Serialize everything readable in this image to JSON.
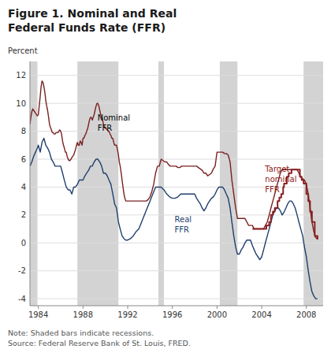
{
  "chart_data": {
    "type": "line",
    "title": "Figure 1. Nominal and Real\nFederal Funds Rate (FFR)",
    "ylabel": "Percent",
    "note": "Note: Shaded bars indicate recessions.\nSource: Federal Reserve Bank of St. Louis, FRED.",
    "xlim": [
      1983.25,
      2009.5
    ],
    "ylim": [
      -4.5,
      13.0
    ],
    "xticks": [
      1984,
      1988,
      1992,
      1996,
      2000,
      2004,
      2008
    ],
    "yticks": [
      -4,
      -2,
      0,
      2,
      4,
      6,
      8,
      10,
      12
    ],
    "grid": true,
    "bands": [
      [
        1983.25,
        1983.92
      ],
      [
        1987.5,
        1991.17
      ],
      [
        1994.75,
        1995.25
      ],
      [
        2000.25,
        2001.83
      ],
      [
        2007.75,
        2009.5
      ]
    ],
    "band_color": "#d3d3d3",
    "annotations": [
      {
        "text": "Nominal\nFFR",
        "x": 1989.3,
        "y": 9.3,
        "color": "#000000"
      },
      {
        "text": "Real\nFFR",
        "x": 1996.2,
        "y": 2.0,
        "color": "#1f3f6e"
      },
      {
        "text": "Target\nnominal\nFFR",
        "x": 2004.3,
        "y": 5.6,
        "color": "#8b2020"
      }
    ],
    "series": [
      {
        "type": "line",
        "color": "#7b2020",
        "x": [
          1983.25,
          1983.33,
          1983.42,
          1983.5,
          1983.58,
          1983.67,
          1983.75,
          1983.83,
          1983.92,
          1984.0,
          1984.08,
          1984.17,
          1984.25,
          1984.33,
          1984.42,
          1984.5,
          1984.58,
          1984.67,
          1984.75,
          1984.83,
          1984.92,
          1985.0,
          1985.08,
          1985.17,
          1985.25,
          1985.33,
          1985.42,
          1985.5,
          1985.58,
          1985.67,
          1985.75,
          1985.83,
          1985.92,
          1986.0,
          1986.08,
          1986.17,
          1986.25,
          1986.33,
          1986.42,
          1986.5,
          1986.58,
          1986.67,
          1986.75,
          1986.83,
          1986.92,
          1987.0,
          1987.08,
          1987.17,
          1987.25,
          1987.33,
          1987.42,
          1987.5,
          1987.58,
          1987.67,
          1987.75,
          1987.83,
          1987.92,
          1988.0,
          1988.08,
          1988.17,
          1988.25,
          1988.33,
          1988.42,
          1988.5,
          1988.58,
          1988.67,
          1988.75,
          1988.83,
          1988.92,
          1989.0,
          1989.08,
          1989.17,
          1989.25,
          1989.33,
          1989.42,
          1989.5,
          1989.58,
          1989.67,
          1989.75,
          1989.83,
          1989.92,
          1990.0,
          1990.08,
          1990.17,
          1990.25,
          1990.33,
          1990.42,
          1990.5,
          1990.58,
          1990.67,
          1990.75,
          1990.83,
          1990.92,
          1991.0,
          1991.08,
          1991.17,
          1991.25,
          1991.33,
          1991.42,
          1991.5,
          1991.58,
          1991.67,
          1991.75,
          1991.83,
          1991.92,
          1992.0,
          1992.17,
          1992.33,
          1992.5,
          1992.67,
          1992.83,
          1993.0,
          1993.17,
          1993.33,
          1993.5,
          1993.67,
          1993.83,
          1994.0,
          1994.17,
          1994.33,
          1994.5,
          1994.67,
          1994.83,
          1995.0,
          1995.17,
          1995.33,
          1995.5,
          1995.67,
          1995.83,
          1996.0,
          1996.17,
          1996.33,
          1996.5,
          1996.67,
          1996.83,
          1997.0,
          1997.17,
          1997.33,
          1997.5,
          1997.67,
          1997.83,
          1998.0,
          1998.17,
          1998.33,
          1998.5,
          1998.67,
          1998.83,
          1999.0,
          1999.17,
          1999.33,
          1999.5,
          1999.67,
          1999.83,
          2000.0,
          2000.17,
          2000.33,
          2000.5,
          2000.67,
          2000.83,
          2001.0,
          2001.17,
          2001.33,
          2001.5,
          2001.67,
          2001.83,
          2002.0,
          2002.17,
          2002.33,
          2002.5,
          2002.67,
          2002.83,
          2003.0,
          2003.17,
          2003.33,
          2003.5,
          2003.67,
          2003.83,
          2004.0,
          2004.17,
          2004.33,
          2004.5,
          2004.67,
          2004.83,
          2005.0,
          2005.17,
          2005.33,
          2005.5,
          2005.67,
          2005.83,
          2006.0,
          2006.17,
          2006.33,
          2006.5,
          2006.67,
          2006.83,
          2007.0,
          2007.17,
          2007.33,
          2007.5,
          2007.67,
          2007.83,
          2008.0,
          2008.17,
          2008.33,
          2008.5,
          2008.67,
          2008.83,
          2009.0
        ],
        "values": [
          8.5,
          9.0,
          9.4,
          9.6,
          9.5,
          9.4,
          9.3,
          9.2,
          9.1,
          9.2,
          9.8,
          10.5,
          11.2,
          11.6,
          11.5,
          11.2,
          10.8,
          10.2,
          9.8,
          9.5,
          9.0,
          8.5,
          8.3,
          8.1,
          7.9,
          7.9,
          7.8,
          7.8,
          7.9,
          7.9,
          7.9,
          8.0,
          8.1,
          8.0,
          7.8,
          7.3,
          7.0,
          6.8,
          6.5,
          6.5,
          6.2,
          6.0,
          5.9,
          5.9,
          6.0,
          6.1,
          6.2,
          6.3,
          6.5,
          6.7,
          7.0,
          7.2,
          7.0,
          7.0,
          7.3,
          7.2,
          7.0,
          7.5,
          7.5,
          7.7,
          7.8,
          8.0,
          8.2,
          8.5,
          8.8,
          9.0,
          9.0,
          8.8,
          9.0,
          9.2,
          9.5,
          9.8,
          10.0,
          10.0,
          9.8,
          9.5,
          9.2,
          9.0,
          8.8,
          8.5,
          8.3,
          8.2,
          8.2,
          8.1,
          8.0,
          8.0,
          7.8,
          7.7,
          7.5,
          7.5,
          7.2,
          7.0,
          7.0,
          7.0,
          6.7,
          6.3,
          5.8,
          5.5,
          5.0,
          4.5,
          4.0,
          3.5,
          3.2,
          3.0,
          3.0,
          3.0,
          3.0,
          3.0,
          3.0,
          3.0,
          3.0,
          3.0,
          3.0,
          3.0,
          3.0,
          3.0,
          3.1,
          3.3,
          3.7,
          4.2,
          5.0,
          5.5,
          5.5,
          6.0,
          5.9,
          5.8,
          5.8,
          5.6,
          5.5,
          5.5,
          5.5,
          5.5,
          5.4,
          5.4,
          5.5,
          5.5,
          5.5,
          5.5,
          5.5,
          5.5,
          5.5,
          5.5,
          5.5,
          5.4,
          5.3,
          5.2,
          5.0,
          5.0,
          4.8,
          4.9,
          5.0,
          5.3,
          5.5,
          6.5,
          6.5,
          6.5,
          6.5,
          6.4,
          6.4,
          6.3,
          5.8,
          4.5,
          3.5,
          2.5,
          1.75,
          1.75,
          1.75,
          1.75,
          1.75,
          1.5,
          1.25,
          1.25,
          1.25,
          1.0,
          1.0,
          1.0,
          1.0,
          1.0,
          1.0,
          1.25,
          1.5,
          2.0,
          2.5,
          3.0,
          3.5,
          4.0,
          4.5,
          5.0,
          5.25,
          5.25,
          5.25,
          5.25,
          5.25,
          5.25,
          5.25,
          5.25,
          5.25,
          5.0,
          4.7,
          4.6,
          4.5,
          4.2,
          3.5,
          2.5,
          1.5,
          0.8,
          0.4,
          0.25
        ]
      },
      {
        "type": "line",
        "color": "#1f3f6e",
        "x": [
          1983.25,
          1983.42,
          1983.58,
          1983.75,
          1983.92,
          1984.0,
          1984.17,
          1984.33,
          1984.5,
          1984.67,
          1984.83,
          1985.0,
          1985.17,
          1985.33,
          1985.5,
          1985.67,
          1985.83,
          1986.0,
          1986.17,
          1986.33,
          1986.5,
          1986.67,
          1986.83,
          1987.0,
          1987.17,
          1987.33,
          1987.5,
          1987.67,
          1987.83,
          1988.0,
          1988.17,
          1988.33,
          1988.5,
          1988.67,
          1988.83,
          1989.0,
          1989.17,
          1989.33,
          1989.5,
          1989.67,
          1989.83,
          1990.0,
          1990.17,
          1990.33,
          1990.5,
          1990.67,
          1990.83,
          1991.0,
          1991.17,
          1991.33,
          1991.5,
          1991.67,
          1991.83,
          1992.0,
          1992.25,
          1992.5,
          1992.75,
          1993.0,
          1993.25,
          1993.5,
          1993.75,
          1994.0,
          1994.25,
          1994.5,
          1994.75,
          1995.0,
          1995.25,
          1995.5,
          1995.75,
          1996.0,
          1996.25,
          1996.5,
          1996.75,
          1997.0,
          1997.25,
          1997.5,
          1997.75,
          1998.0,
          1998.17,
          1998.33,
          1998.5,
          1998.67,
          1998.83,
          1999.0,
          1999.17,
          1999.33,
          1999.5,
          1999.67,
          1999.83,
          2000.0,
          2000.17,
          2000.33,
          2000.5,
          2000.67,
          2000.83,
          2001.0,
          2001.17,
          2001.33,
          2001.5,
          2001.67,
          2001.83,
          2002.0,
          2002.17,
          2002.33,
          2002.5,
          2002.67,
          2002.83,
          2003.0,
          2003.17,
          2003.33,
          2003.5,
          2003.67,
          2003.83,
          2004.0,
          2004.17,
          2004.33,
          2004.5,
          2004.67,
          2004.83,
          2005.0,
          2005.17,
          2005.33,
          2005.5,
          2005.67,
          2005.83,
          2006.0,
          2006.17,
          2006.33,
          2006.5,
          2006.67,
          2006.83,
          2007.0,
          2007.17,
          2007.33,
          2007.5,
          2007.67,
          2007.83,
          2008.0,
          2008.17,
          2008.33,
          2008.5,
          2008.67,
          2008.83,
          2009.0
        ],
        "values": [
          5.5,
          5.8,
          6.2,
          6.5,
          6.8,
          7.0,
          6.5,
          7.2,
          7.5,
          7.0,
          6.8,
          6.5,
          6.0,
          5.8,
          5.5,
          5.5,
          5.5,
          5.5,
          5.0,
          4.5,
          4.0,
          3.8,
          3.8,
          3.5,
          4.0,
          4.0,
          4.2,
          4.5,
          4.5,
          4.5,
          4.8,
          5.0,
          5.2,
          5.5,
          5.5,
          5.8,
          6.0,
          6.0,
          5.8,
          5.5,
          5.0,
          5.0,
          4.8,
          4.5,
          4.2,
          3.5,
          2.8,
          2.5,
          1.5,
          1.0,
          0.5,
          0.3,
          0.2,
          0.2,
          0.3,
          0.5,
          0.8,
          1.0,
          1.5,
          2.0,
          2.5,
          3.0,
          3.5,
          4.0,
          4.0,
          4.0,
          3.8,
          3.5,
          3.3,
          3.2,
          3.2,
          3.3,
          3.5,
          3.5,
          3.5,
          3.5,
          3.5,
          3.5,
          3.2,
          3.0,
          2.8,
          2.5,
          2.3,
          2.5,
          2.8,
          3.0,
          3.2,
          3.3,
          3.5,
          3.8,
          4.0,
          4.0,
          4.0,
          3.8,
          3.5,
          3.2,
          2.5,
          1.5,
          0.5,
          -0.3,
          -0.8,
          -0.8,
          -0.5,
          -0.3,
          0.0,
          0.2,
          0.2,
          0.2,
          -0.2,
          -0.5,
          -0.8,
          -1.0,
          -1.2,
          -1.0,
          -0.5,
          0.0,
          0.5,
          1.0,
          1.5,
          2.0,
          2.3,
          2.5,
          2.5,
          2.3,
          2.0,
          2.2,
          2.5,
          2.8,
          3.0,
          3.0,
          2.8,
          2.5,
          2.0,
          1.5,
          1.0,
          0.5,
          -0.3,
          -1.0,
          -2.0,
          -2.8,
          -3.5,
          -3.8,
          -4.0,
          -4.0
        ]
      },
      {
        "type": "step",
        "color": "#8b2020",
        "x": [
          2003.17,
          2003.58,
          2004.17,
          2004.42,
          2004.67,
          2004.83,
          2005.0,
          2005.17,
          2005.42,
          2005.58,
          2005.75,
          2005.92,
          2006.0,
          2006.25,
          2006.42,
          2006.67,
          2007.0,
          2007.42,
          2007.58,
          2007.75,
          2008.0,
          2008.17,
          2008.33,
          2008.5,
          2008.75,
          2009.0
        ],
        "values": [
          1.0,
          1.0,
          1.0,
          1.25,
          1.5,
          2.0,
          2.25,
          2.5,
          3.0,
          3.25,
          3.5,
          4.0,
          4.25,
          4.75,
          5.0,
          5.25,
          5.25,
          4.75,
          4.5,
          4.25,
          3.5,
          3.0,
          2.25,
          1.5,
          0.5,
          0.25
        ]
      }
    ]
  }
}
